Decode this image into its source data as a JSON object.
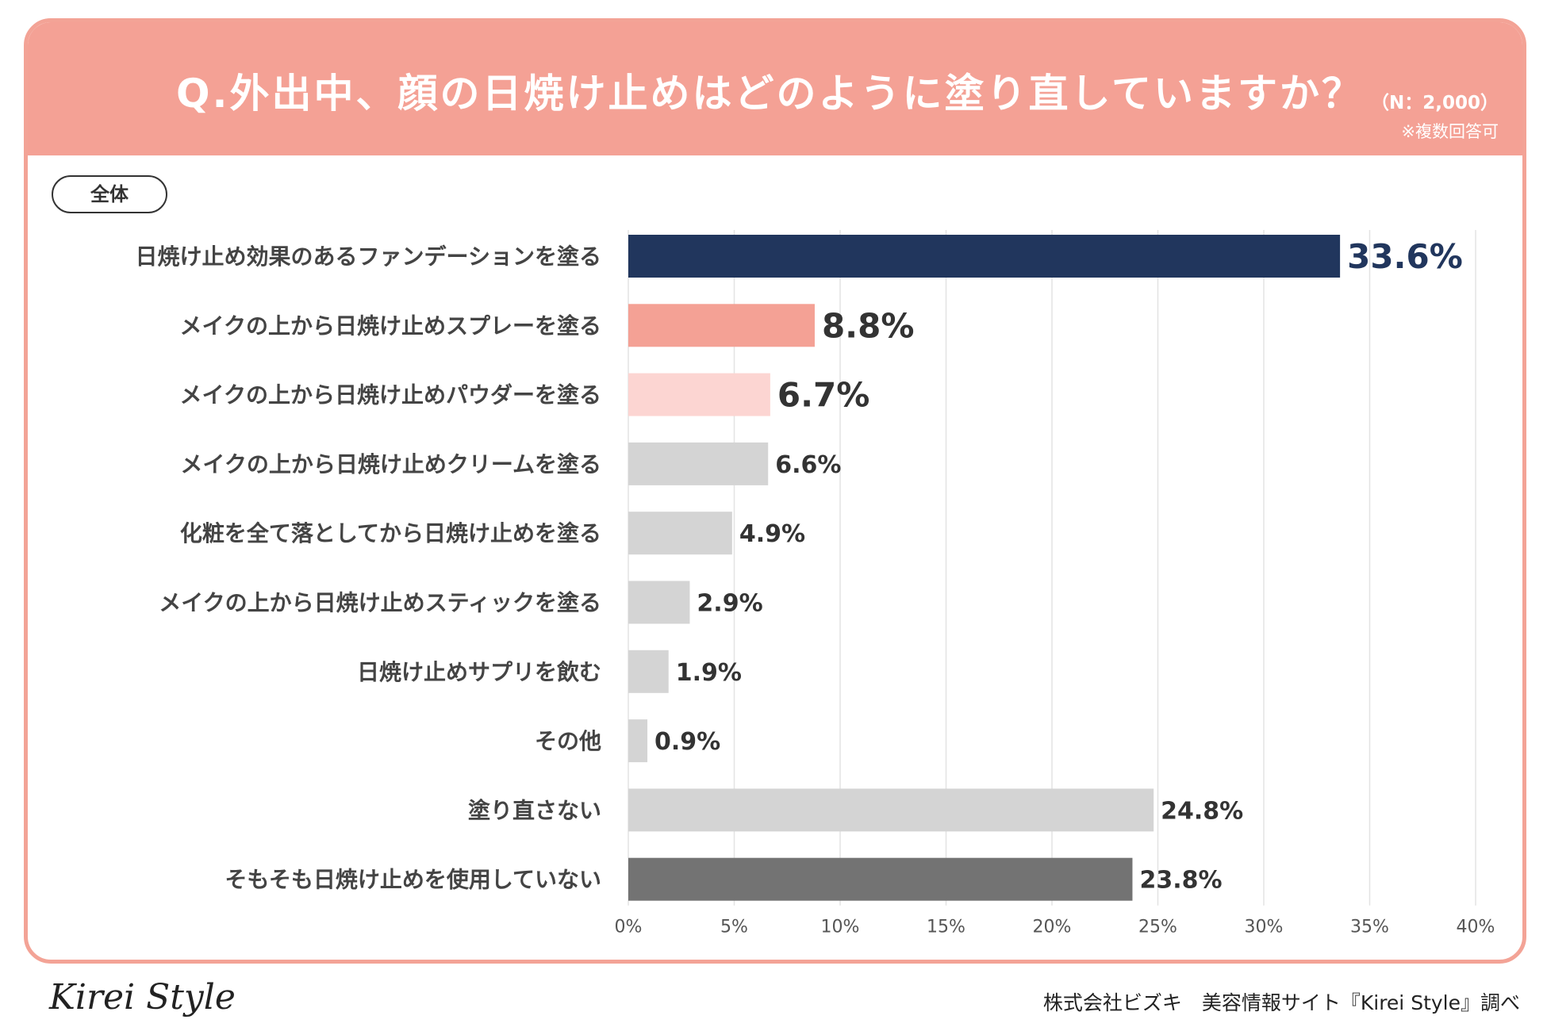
{
  "header": {
    "title": "Q.外出中、顔の日焼け止めはどのように塗り直していますか？",
    "n_label": "（N：2,000）",
    "note": "※複数回答可"
  },
  "segment_label": "全体",
  "colors": {
    "header": "#f4a195",
    "highlight_navy": "#21365d",
    "salmon": "#f4a195",
    "pink_light": "#fcd5d2",
    "gray": "#d4d4d4",
    "gray_dark": "#737373"
  },
  "chart_data": {
    "type": "bar",
    "orientation": "horizontal",
    "categories": [
      "日焼け止め効果のあるファンデーションを塗る",
      "メイクの上から日焼け止めスプレーを塗る",
      "メイクの上から日焼け止めパウダーを塗る",
      "メイクの上から日焼け止めクリームを塗る",
      "化粧を全て落としてから日焼け止めを塗る",
      "メイクの上から日焼け止めスティックを塗る",
      "日焼け止めサプリを飲む",
      "その他",
      "塗り直さない",
      "そもそも日焼け止めを使用していない"
    ],
    "values": [
      33.6,
      8.8,
      6.7,
      6.6,
      4.9,
      2.9,
      1.9,
      0.9,
      24.8,
      23.8
    ],
    "value_labels": [
      "33.6%",
      "8.8%",
      "6.7%",
      "6.6%",
      "4.9%",
      "2.9%",
      "1.9%",
      "0.9%",
      "24.8%",
      "23.8%"
    ],
    "bar_colors": [
      "#21365d",
      "#f4a195",
      "#fcd5d2",
      "#d4d4d4",
      "#d4d4d4",
      "#d4d4d4",
      "#d4d4d4",
      "#d4d4d4",
      "#d4d4d4",
      "#737373"
    ],
    "label_emphasis": [
      "large",
      "large",
      "large",
      "normal",
      "normal",
      "normal",
      "normal",
      "normal",
      "normal",
      "normal"
    ],
    "label_colors": [
      "#21365d",
      "#333333",
      "#333333",
      "#333333",
      "#333333",
      "#333333",
      "#333333",
      "#333333",
      "#333333",
      "#333333"
    ],
    "xlim": [
      0,
      40
    ],
    "ticks": [
      0,
      5,
      10,
      15,
      20,
      25,
      30,
      35,
      40
    ],
    "tick_labels": [
      "0%",
      "5%",
      "10%",
      "15%",
      "20%",
      "25%",
      "30%",
      "35%",
      "40%"
    ],
    "grid": true
  },
  "footer": {
    "logo": "Kirei Style",
    "credit": "株式会社ビズキ　美容情報サイト『Kirei Style』調べ"
  }
}
